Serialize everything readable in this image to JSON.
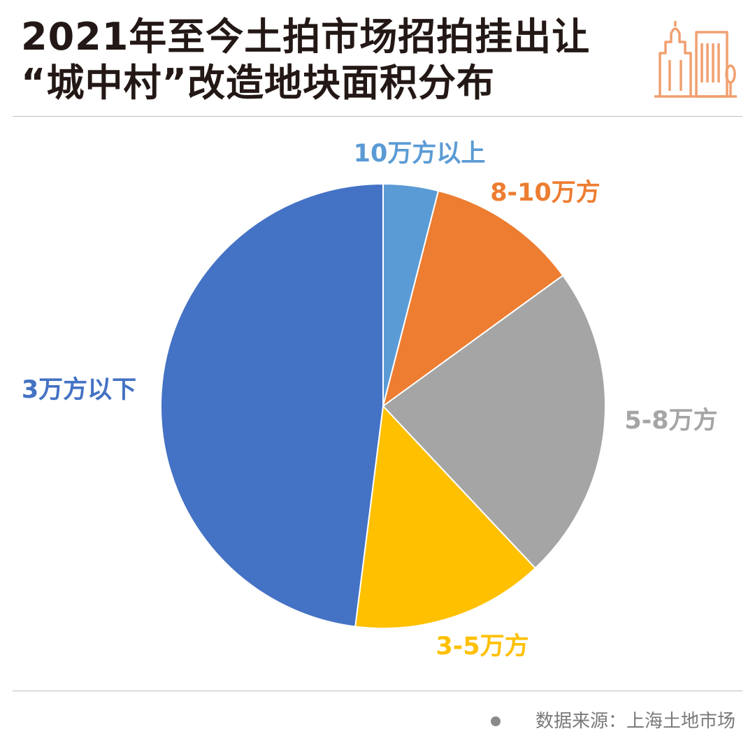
{
  "title_lines": [
    "2021年至今土拍市场招拍挂出让",
    "“城中村”改造地块面积分布"
  ],
  "source": "数据来源：上海土地市场",
  "logo_icon": "city-buildings-icon",
  "colors": {
    "logo": "#F0A070",
    "rule": "#BDBDBD",
    "title": "#231815"
  },
  "chart_data": {
    "type": "pie",
    "start_angle_deg": 0,
    "direction": "clockwise",
    "slices": [
      {
        "label": "10万方以上",
        "value": 4,
        "color": "#5B9BD5"
      },
      {
        "label": "8-10万方",
        "value": 11,
        "color": "#ED7D31"
      },
      {
        "label": "5-8万方",
        "value": 23,
        "color": "#A5A5A5"
      },
      {
        "label": "3-5万方",
        "value": 14,
        "color": "#FFC000"
      },
      {
        "label": "3万方以下",
        "value": 48,
        "color": "#4472C4"
      }
    ]
  }
}
